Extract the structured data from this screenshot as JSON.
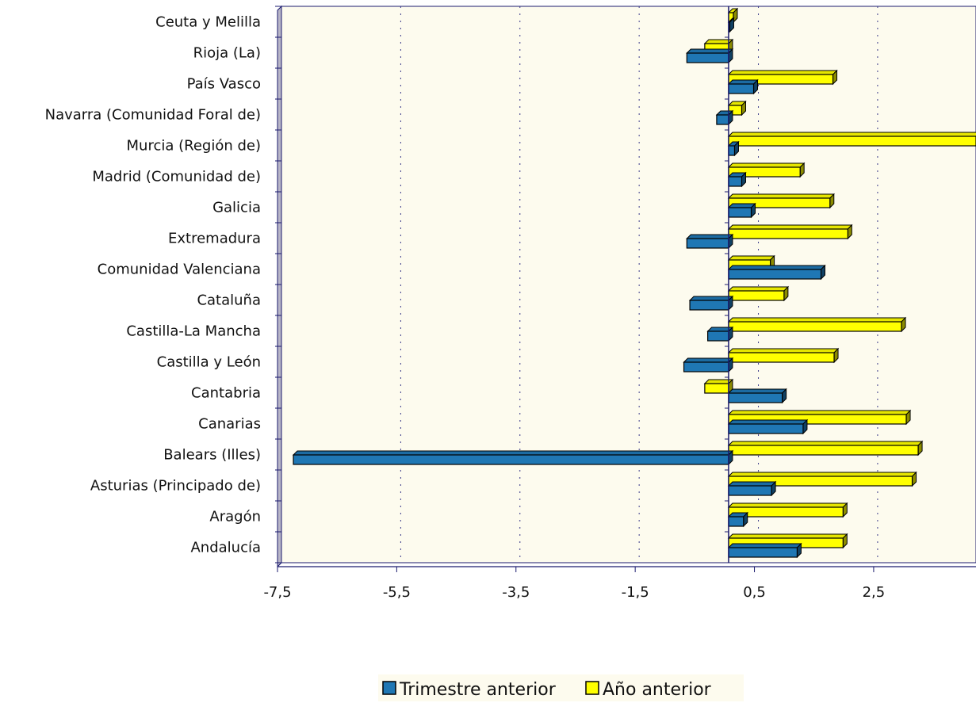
{
  "chart_data": {
    "type": "bar",
    "orientation": "horizontal",
    "categories": [
      "Andalucía",
      "Aragón",
      "Asturias (Principado de)",
      "Balears (Illes)",
      "Canarias",
      "Cantabria",
      "Castilla y León",
      "Castilla-La Mancha",
      "Cataluña",
      "Comunidad Valenciana",
      "Extremadura",
      "Galicia",
      "Madrid (Comunidad de)",
      "Murcia (Región de)",
      "Navarra (Comunidad Foral de)",
      "País Vasco",
      "Rioja (La)",
      "Ceuta y Melilla"
    ],
    "series": [
      {
        "name": "Trimestre anterior",
        "color": "#1f77b4",
        "values": [
          1.15,
          0.25,
          0.72,
          -7.3,
          1.25,
          0.9,
          -0.75,
          -0.35,
          -0.65,
          1.55,
          -0.7,
          0.38,
          0.22,
          0.1,
          -0.2,
          0.42,
          -0.7,
          0.02
        ]
      },
      {
        "name": "Año anterior",
        "color": "#ffff00",
        "values": [
          1.92,
          1.92,
          3.08,
          3.18,
          2.98,
          -0.4,
          1.77,
          2.9,
          0.93,
          0.7,
          2.0,
          1.7,
          1.2,
          4.15,
          0.22,
          1.75,
          -0.4,
          0.08
        ]
      }
    ],
    "xlim": [
      -7.5,
      4.15
    ],
    "xticks": [
      "-7,5",
      "-5,5",
      "-3,5",
      "-1,5",
      "0,5",
      "2,5"
    ],
    "xtick_values": [
      -7.5,
      -5.5,
      -3.5,
      -1.5,
      0.5,
      2.5
    ],
    "grid": true,
    "legend_position": "bottom",
    "plot_background": "#fdfbee"
  }
}
